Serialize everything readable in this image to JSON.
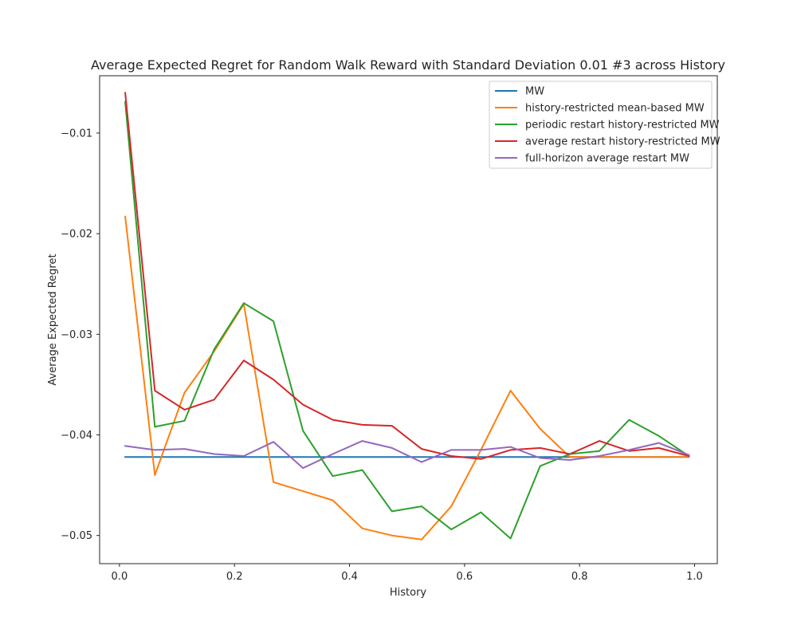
{
  "chart_data": {
    "type": "line",
    "title": "Average Expected Regret for Random Walk Reward with Standard Deviation 0.01 #3 across History",
    "xlabel": "History",
    "ylabel": "Average Expected Regret",
    "xlim": [
      -0.0345,
      1.0395
    ],
    "ylim": [
      -0.0528,
      -0.0043
    ],
    "xticks": [
      0.0,
      0.2,
      0.4,
      0.6,
      0.8,
      1.0
    ],
    "xtick_labels": [
      "0.0",
      "0.2",
      "0.4",
      "0.6",
      "0.8",
      "1.0"
    ],
    "yticks": [
      -0.05,
      -0.04,
      -0.03,
      -0.02,
      -0.01
    ],
    "ytick_labels": [
      "−0.05",
      "−0.04",
      "−0.03",
      "−0.02",
      "−0.01"
    ],
    "grid": false,
    "legend_position": "top-right",
    "x": [
      0.01,
      0.0615,
      0.1131,
      0.1646,
      0.2162,
      0.2677,
      0.3192,
      0.3708,
      0.4223,
      0.4738,
      0.5254,
      0.5769,
      0.6285,
      0.68,
      0.7315,
      0.7831,
      0.8346,
      0.8862,
      0.9377,
      0.99
    ],
    "series": [
      {
        "name": "MW",
        "color": "#1f77b4",
        "values": [
          -0.0422,
          -0.0422,
          -0.0422,
          -0.0422,
          -0.0422,
          -0.0422,
          -0.0422,
          -0.0422,
          -0.0422,
          -0.0422,
          -0.0422,
          -0.0422,
          -0.0422,
          -0.0422,
          -0.0422,
          -0.0422,
          -0.0422,
          -0.0422,
          -0.0422,
          -0.0422
        ]
      },
      {
        "name": "history-restricted mean-based MW",
        "color": "#ff7f0e",
        "values": [
          -0.0183,
          -0.044,
          -0.0358,
          -0.0317,
          -0.027,
          -0.0447,
          -0.0456,
          -0.0465,
          -0.0493,
          -0.05,
          -0.0504,
          -0.0471,
          -0.0415,
          -0.0356,
          -0.0394,
          -0.0422,
          -0.0422,
          -0.0422,
          -0.0422,
          -0.0422
        ]
      },
      {
        "name": "periodic restart history-restricted MW",
        "color": "#2ca02c",
        "values": [
          -0.0069,
          -0.0392,
          -0.0386,
          -0.0315,
          -0.0269,
          -0.0287,
          -0.0396,
          -0.0441,
          -0.0435,
          -0.0476,
          -0.0471,
          -0.0494,
          -0.0477,
          -0.0503,
          -0.0431,
          -0.0419,
          -0.0416,
          -0.0385,
          -0.0401,
          -0.0421
        ]
      },
      {
        "name": "average restart history-restricted MW",
        "color": "#d62728",
        "values": [
          -0.006,
          -0.0356,
          -0.0375,
          -0.0365,
          -0.0326,
          -0.0345,
          -0.037,
          -0.0385,
          -0.039,
          -0.0391,
          -0.0414,
          -0.0421,
          -0.0424,
          -0.0415,
          -0.0413,
          -0.0419,
          -0.0406,
          -0.0416,
          -0.0413,
          -0.0421
        ]
      },
      {
        "name": "full-horizon average restart MW",
        "color": "#9467bd",
        "values": [
          -0.0411,
          -0.0415,
          -0.0414,
          -0.0419,
          -0.0421,
          -0.0407,
          -0.0433,
          -0.0419,
          -0.0406,
          -0.0413,
          -0.0427,
          -0.0415,
          -0.0415,
          -0.0412,
          -0.0423,
          -0.0425,
          -0.0421,
          -0.0415,
          -0.0408,
          -0.042
        ]
      }
    ]
  }
}
